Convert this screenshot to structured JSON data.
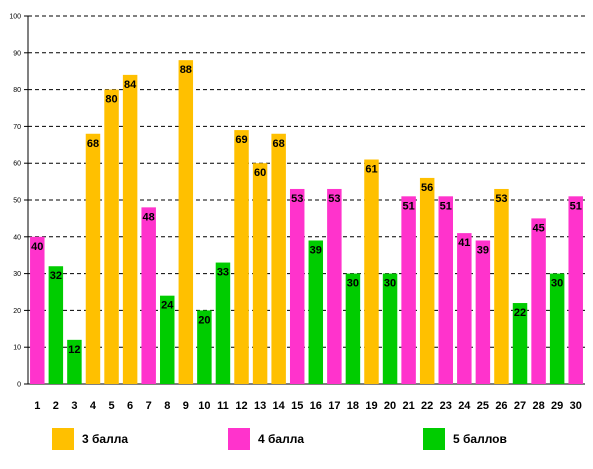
{
  "chart_data": {
    "type": "bar",
    "categories": [
      "1",
      "2",
      "3",
      "4",
      "5",
      "6",
      "7",
      "8",
      "9",
      "10",
      "11",
      "12",
      "13",
      "14",
      "15",
      "16",
      "17",
      "18",
      "19",
      "20",
      "21",
      "22",
      "23",
      "24",
      "25",
      "26",
      "27",
      "28",
      "29",
      "30"
    ],
    "values": [
      40,
      32,
      12,
      68,
      80,
      84,
      48,
      24,
      88,
      20,
      33,
      69,
      60,
      68,
      53,
      39,
      53,
      30,
      61,
      30,
      51,
      56,
      51,
      41,
      39,
      53,
      22,
      45,
      30,
      51
    ],
    "groups": [
      "4 балла",
      "5 баллов",
      "5 баллов",
      "3 балла",
      "3 балла",
      "3 балла",
      "4 балла",
      "5 баллов",
      "3 балла",
      "5 баллов",
      "5 баллов",
      "3 балла",
      "3 балла",
      "3 балла",
      "4 балла",
      "5 баллов",
      "4 балла",
      "5 баллов",
      "3 балла",
      "5 баллов",
      "4 балла",
      "3 балла",
      "4 балла",
      "4 балла",
      "4 балла",
      "3 балла",
      "5 баллов",
      "4 балла",
      "5 баллов",
      "4 балла"
    ],
    "ylim": [
      0,
      100
    ],
    "yticks": [
      0,
      10,
      20,
      30,
      40,
      50,
      60,
      70,
      80,
      90,
      100
    ],
    "grid": true,
    "legend_position": "bottom",
    "legend": [
      {
        "name": "3 балла",
        "color": "#FFC000"
      },
      {
        "name": "4 балла",
        "color": "#FF33CC"
      },
      {
        "name": "5 баллов",
        "color": "#00CC00"
      }
    ]
  }
}
